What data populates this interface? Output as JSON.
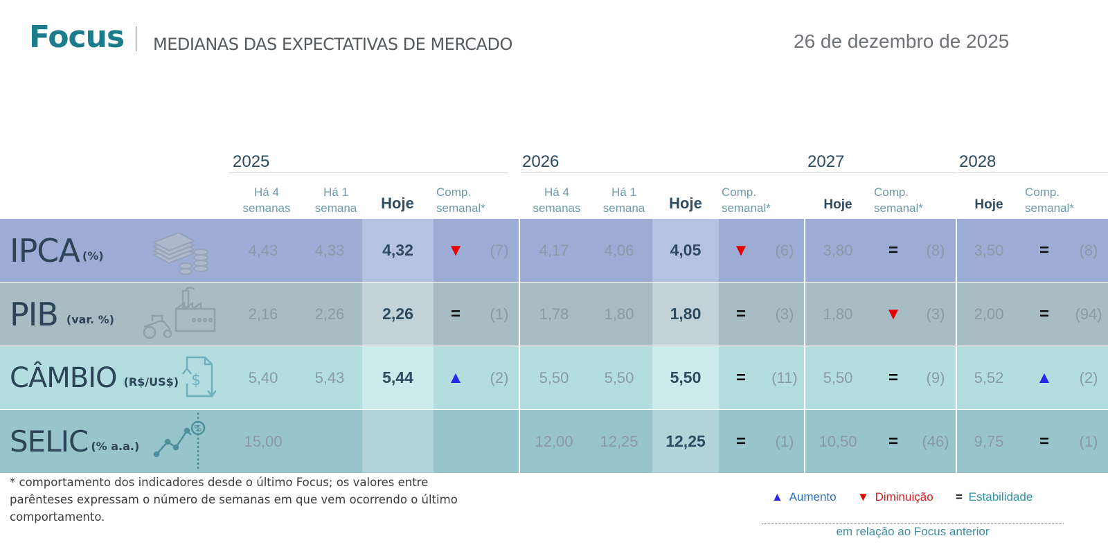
{
  "header": {
    "logo": "Focus",
    "subtitle": "MEDIANAS DAS EXPECTATIVAS DE MERCADO",
    "date": "26 de dezembro de 2025"
  },
  "years": [
    "2025",
    "2026",
    "2027",
    "2028"
  ],
  "column_headers": {
    "ha4": [
      "Há 4",
      "semanas"
    ],
    "ha1": [
      "Há 1",
      "semana"
    ],
    "hoje": "Hoje",
    "comp": [
      "Comp.",
      "semanal*"
    ]
  },
  "rows": [
    {
      "label": "IPCA",
      "unit": "(%)",
      "icon": "money-stack-icon",
      "y2025": {
        "ha4": "4,43",
        "ha1": "4,33",
        "hoje": "4,32",
        "trend": "down",
        "weeks": "(7)"
      },
      "y2026": {
        "ha4": "4,17",
        "ha1": "4,06",
        "hoje": "4,05",
        "trend": "down",
        "weeks": "(6)"
      },
      "y2027": {
        "hoje": "3,80",
        "trend": "equal",
        "weeks": "(8)"
      },
      "y2028": {
        "hoje": "3,50",
        "trend": "equal",
        "weeks": "(8)"
      }
    },
    {
      "label": "PIB",
      "unit": "(var. %)",
      "icon": "factory-tractor-icon",
      "y2025": {
        "ha4": "2,16",
        "ha1": "2,26",
        "hoje": "2,26",
        "trend": "equal",
        "weeks": "(1)"
      },
      "y2026": {
        "ha4": "1,78",
        "ha1": "1,80",
        "hoje": "1,80",
        "trend": "equal",
        "weeks": "(3)"
      },
      "y2027": {
        "hoje": "1,80",
        "trend": "down",
        "weeks": "(3)"
      },
      "y2028": {
        "hoje": "2,00",
        "trend": "equal",
        "weeks": "(94)"
      }
    },
    {
      "label": "CÂMBIO",
      "unit": "(R$/US$)",
      "icon": "exchange-dollar-icon",
      "y2025": {
        "ha4": "5,40",
        "ha1": "5,43",
        "hoje": "5,44",
        "trend": "up",
        "weeks": "(2)"
      },
      "y2026": {
        "ha4": "5,50",
        "ha1": "5,50",
        "hoje": "5,50",
        "trend": "equal",
        "weeks": "(11)"
      },
      "y2027": {
        "hoje": "5,50",
        "trend": "equal",
        "weeks": "(9)"
      },
      "y2028": {
        "hoje": "5,52",
        "trend": "up",
        "weeks": "(2)"
      }
    },
    {
      "label": "SELIC",
      "unit": "(% a.a.)",
      "icon": "interest-rate-chart-icon",
      "y2025": {
        "ha4": "15,00",
        "ha1": "",
        "hoje": "",
        "trend": "",
        "weeks": ""
      },
      "y2026": {
        "ha4": "12,00",
        "ha1": "12,25",
        "hoje": "12,25",
        "trend": "equal",
        "weeks": "(1)"
      },
      "y2027": {
        "hoje": "10,50",
        "trend": "equal",
        "weeks": "(46)"
      },
      "y2028": {
        "hoje": "9,75",
        "trend": "equal",
        "weeks": "(1)"
      }
    }
  ],
  "trend_symbols": {
    "up": "▲",
    "down": "▼",
    "equal": "="
  },
  "footnote": "* comportamento dos indicadores desde o último Focus; os valores entre parênteses expressam o número de semanas em que vem ocorrendo o último comportamento.",
  "legend": {
    "up_label": "Aumento",
    "down_label": "Diminuição",
    "equal_label": "Estabilidade",
    "note": "em relação ao Focus anterior"
  },
  "colors": {
    "brand": "#1b7d8c",
    "up": "#2929e6",
    "down": "#e60000",
    "row_ipca": "#9cacd4",
    "row_pib": "#a8bcc4",
    "row_cambio": "#b4dde0",
    "row_selic": "#98c4cc"
  }
}
